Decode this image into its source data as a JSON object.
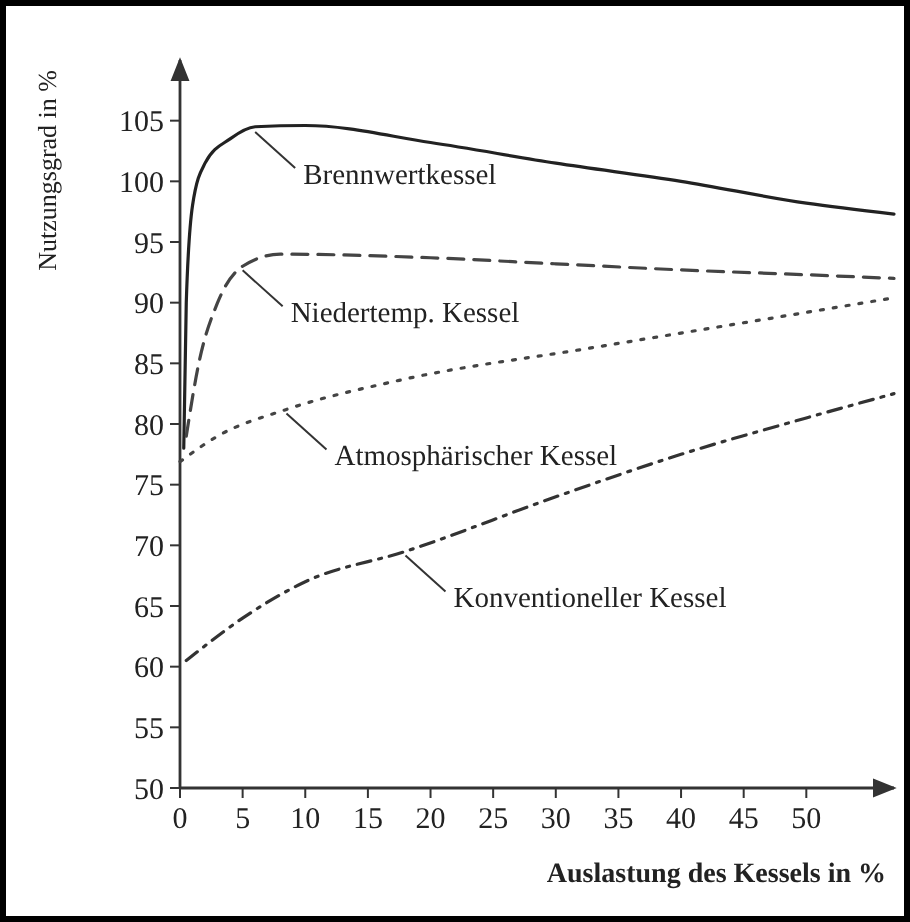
{
  "chart_data": {
    "type": "line",
    "xlabel": "Auslastung des Kessels in %",
    "ylabel": "Nutzungsgrad in %",
    "xlim": [
      0,
      57
    ],
    "ylim": [
      50,
      110
    ],
    "xticks": [
      0,
      5,
      10,
      15,
      20,
      25,
      30,
      35,
      40,
      45,
      50
    ],
    "yticks": [
      50,
      55,
      60,
      65,
      70,
      75,
      80,
      85,
      90,
      95,
      100,
      105
    ],
    "marker": "none",
    "series": [
      {
        "color": "#222222",
        "line_style": "solid",
        "x": [
          0.3,
          0.5,
          1,
          2,
          4,
          6,
          10,
          20,
          30,
          40,
          50,
          57
        ],
        "values": [
          78,
          90,
          98,
          101.5,
          103.5,
          104.5,
          104.6,
          103.2,
          101.5,
          100,
          98.2,
          97.3
        ]
      },
      {
        "color": "#444444",
        "line_style": "dashed",
        "x": [
          0.5,
          1.5,
          3,
          5,
          8,
          20,
          30,
          40,
          50,
          57
        ],
        "values": [
          79,
          85,
          90,
          93,
          94,
          93.7,
          93.2,
          92.7,
          92.3,
          92
        ]
      },
      {
        "color": "#444444",
        "line_style": "dotted",
        "x": [
          0,
          3,
          8.5,
          17.5,
          33,
          46.5,
          57
        ],
        "values": [
          76.9,
          79,
          81.2,
          83.6,
          86.3,
          88.6,
          90.4
        ]
      },
      {
        "color": "#333333",
        "line_style": "dashdot",
        "x": [
          0.5,
          5,
          10,
          18,
          30,
          40,
          50,
          57
        ],
        "values": [
          60.5,
          64,
          67,
          69.5,
          74,
          77.5,
          80.5,
          82.5
        ]
      }
    ],
    "annotations": [
      {
        "text": "Brennwertkessel",
        "x": 6,
        "y": 104.4
      },
      {
        "text": "Niedertemp. Kessel",
        "x": 5,
        "y": 93
      },
      {
        "text": "Atmosphärischer Kessel",
        "x": 8.5,
        "y": 81.2
      },
      {
        "text": "Konventioneller Kessel",
        "x": 18,
        "y": 69.5
      }
    ]
  }
}
